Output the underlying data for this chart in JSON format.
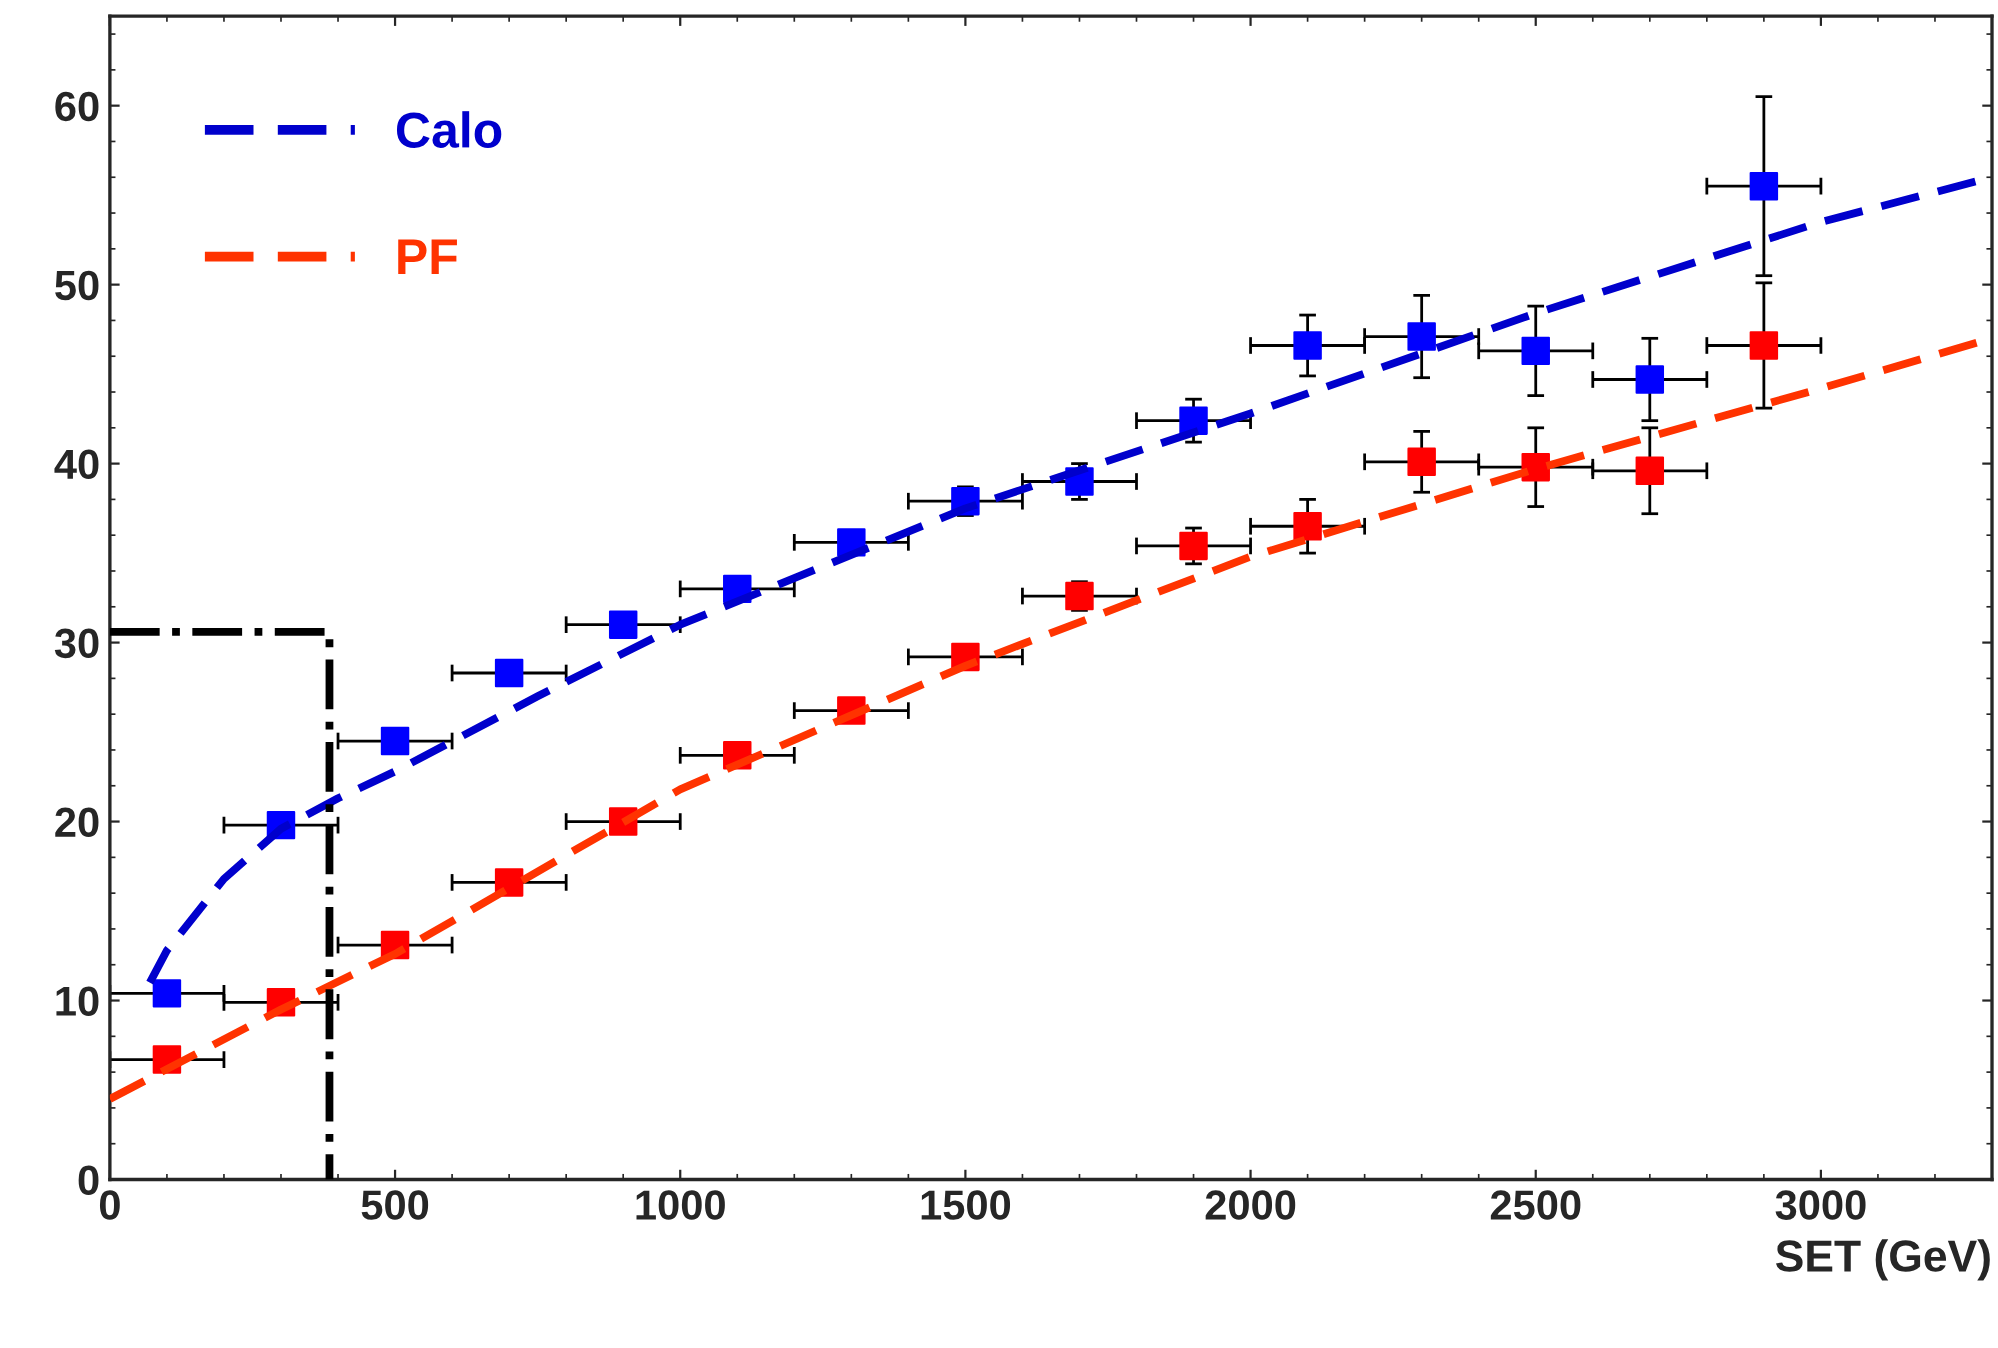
{
  "chart_data": {
    "type": "scatter",
    "xlabel": "SET (GeV)",
    "xlim": [
      0,
      3300
    ],
    "ylim": [
      0,
      65
    ],
    "xticks": [
      0,
      500,
      1000,
      1500,
      2000,
      2500,
      3000
    ],
    "yticks": [
      0,
      10,
      20,
      30,
      40,
      50,
      60
    ],
    "grid": false,
    "legend": "top left",
    "series": [
      {
        "color": "#0000ff",
        "marker": "square",
        "x": [
          100,
          300,
          500,
          700,
          900,
          1100,
          1300,
          1500,
          1700,
          1900,
          2100,
          2300,
          2500,
          2700,
          2900
        ],
        "values": [
          10.4,
          19.8,
          24.5,
          28.3,
          31.0,
          33.0,
          35.6,
          37.9,
          39.0,
          42.4,
          46.6,
          47.1,
          46.3,
          44.7,
          55.5
        ],
        "errors": [
          null,
          null,
          null,
          null,
          null,
          null,
          null,
          0.8,
          1.0,
          1.2,
          1.7,
          2.3,
          2.5,
          2.3,
          5.0
        ],
        "xerrors": [
          100,
          100,
          100,
          100,
          100,
          100,
          100,
          100,
          100,
          100,
          100,
          100,
          100,
          100,
          100
        ]
      },
      {
        "color": "#ff0000",
        "marker": "square",
        "x": [
          100,
          300,
          500,
          700,
          900,
          1100,
          1300,
          1500,
          1700,
          1900,
          2100,
          2300,
          2500,
          2700,
          2900
        ],
        "values": [
          6.7,
          9.9,
          13.1,
          16.6,
          20.0,
          23.7,
          26.2,
          29.2,
          32.6,
          35.4,
          36.5,
          40.1,
          39.8,
          39.6,
          46.6
        ],
        "errors": [
          null,
          null,
          null,
          null,
          null,
          null,
          null,
          null,
          0.8,
          1.0,
          1.5,
          1.7,
          2.2,
          2.4,
          3.5
        ],
        "xerrors": [
          100,
          100,
          100,
          100,
          100,
          100,
          100,
          100,
          100,
          100,
          100,
          100,
          100,
          100,
          100
        ]
      },
      {
        "type": "line",
        "name": "Calo",
        "color": "#0000cc",
        "line_style": "dashed",
        "x": [
          70,
          100,
          200,
          300,
          400,
          500,
          750,
          1000,
          1500,
          2000,
          2500,
          3000,
          3300
        ],
        "values": [
          11.0,
          12.8,
          16.8,
          19.6,
          21.3,
          22.8,
          27.0,
          31.0,
          37.5,
          42.8,
          48.4,
          53.5,
          56.0
        ]
      },
      {
        "type": "line",
        "name": "PF",
        "color": "#ff3300",
        "line_style": "dashed",
        "x": [
          0,
          300,
          500,
          1000,
          1500,
          2000,
          2500,
          3000,
          3300
        ],
        "values": [
          4.5,
          9.5,
          12.6,
          21.8,
          28.7,
          34.8,
          39.7,
          44.2,
          47.0
        ]
      },
      {
        "type": "line",
        "color": "#000000",
        "line_style": "dashdot",
        "x": [
          0,
          385,
          385
        ],
        "values": [
          30.6,
          30.6,
          0
        ]
      }
    ]
  }
}
